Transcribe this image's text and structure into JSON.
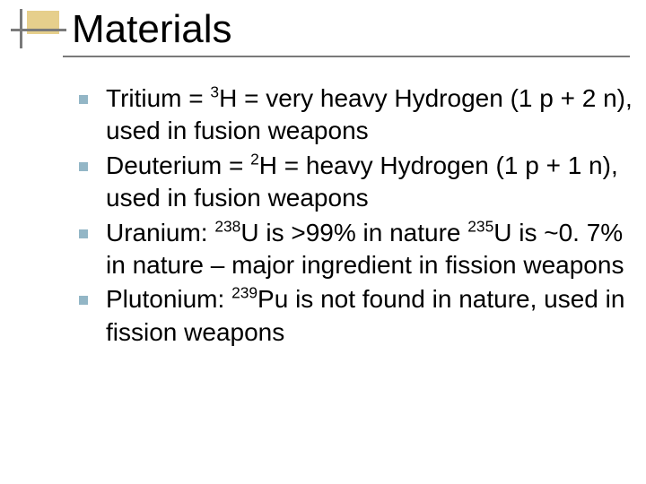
{
  "decoration": {
    "box_color": "#e6cf8c",
    "line_color": "#7a7a7a"
  },
  "title": "Materials",
  "title_color": "#000000",
  "title_fontsize": 44,
  "underline_color": "#7a7a7a",
  "bullet_marker_color": "#93b6c6",
  "body_fontsize": 28,
  "body_color": "#000000",
  "bullets": [
    {
      "parts": [
        {
          "t": "Tritium = "
        },
        {
          "sup": "3"
        },
        {
          "t": "H = very heavy Hydrogen (1 p + 2 n), used in fusion weapons"
        }
      ]
    },
    {
      "parts": [
        {
          "t": "Deuterium = "
        },
        {
          "sup": "2"
        },
        {
          "t": "H = heavy Hydrogen (1 p + 1 n), used in fusion weapons"
        }
      ]
    },
    {
      "parts": [
        {
          "t": "Uranium: "
        },
        {
          "sup": "238"
        },
        {
          "t": "U is >99% in nature "
        },
        {
          "sup": "235"
        },
        {
          "t": "U is ~0. 7% in nature – major ingredient in fission weapons"
        }
      ]
    },
    {
      "parts": [
        {
          "t": "Plutonium: "
        },
        {
          "sup": "239"
        },
        {
          "t": "Pu is not found in nature, used in fission weapons"
        }
      ]
    }
  ]
}
